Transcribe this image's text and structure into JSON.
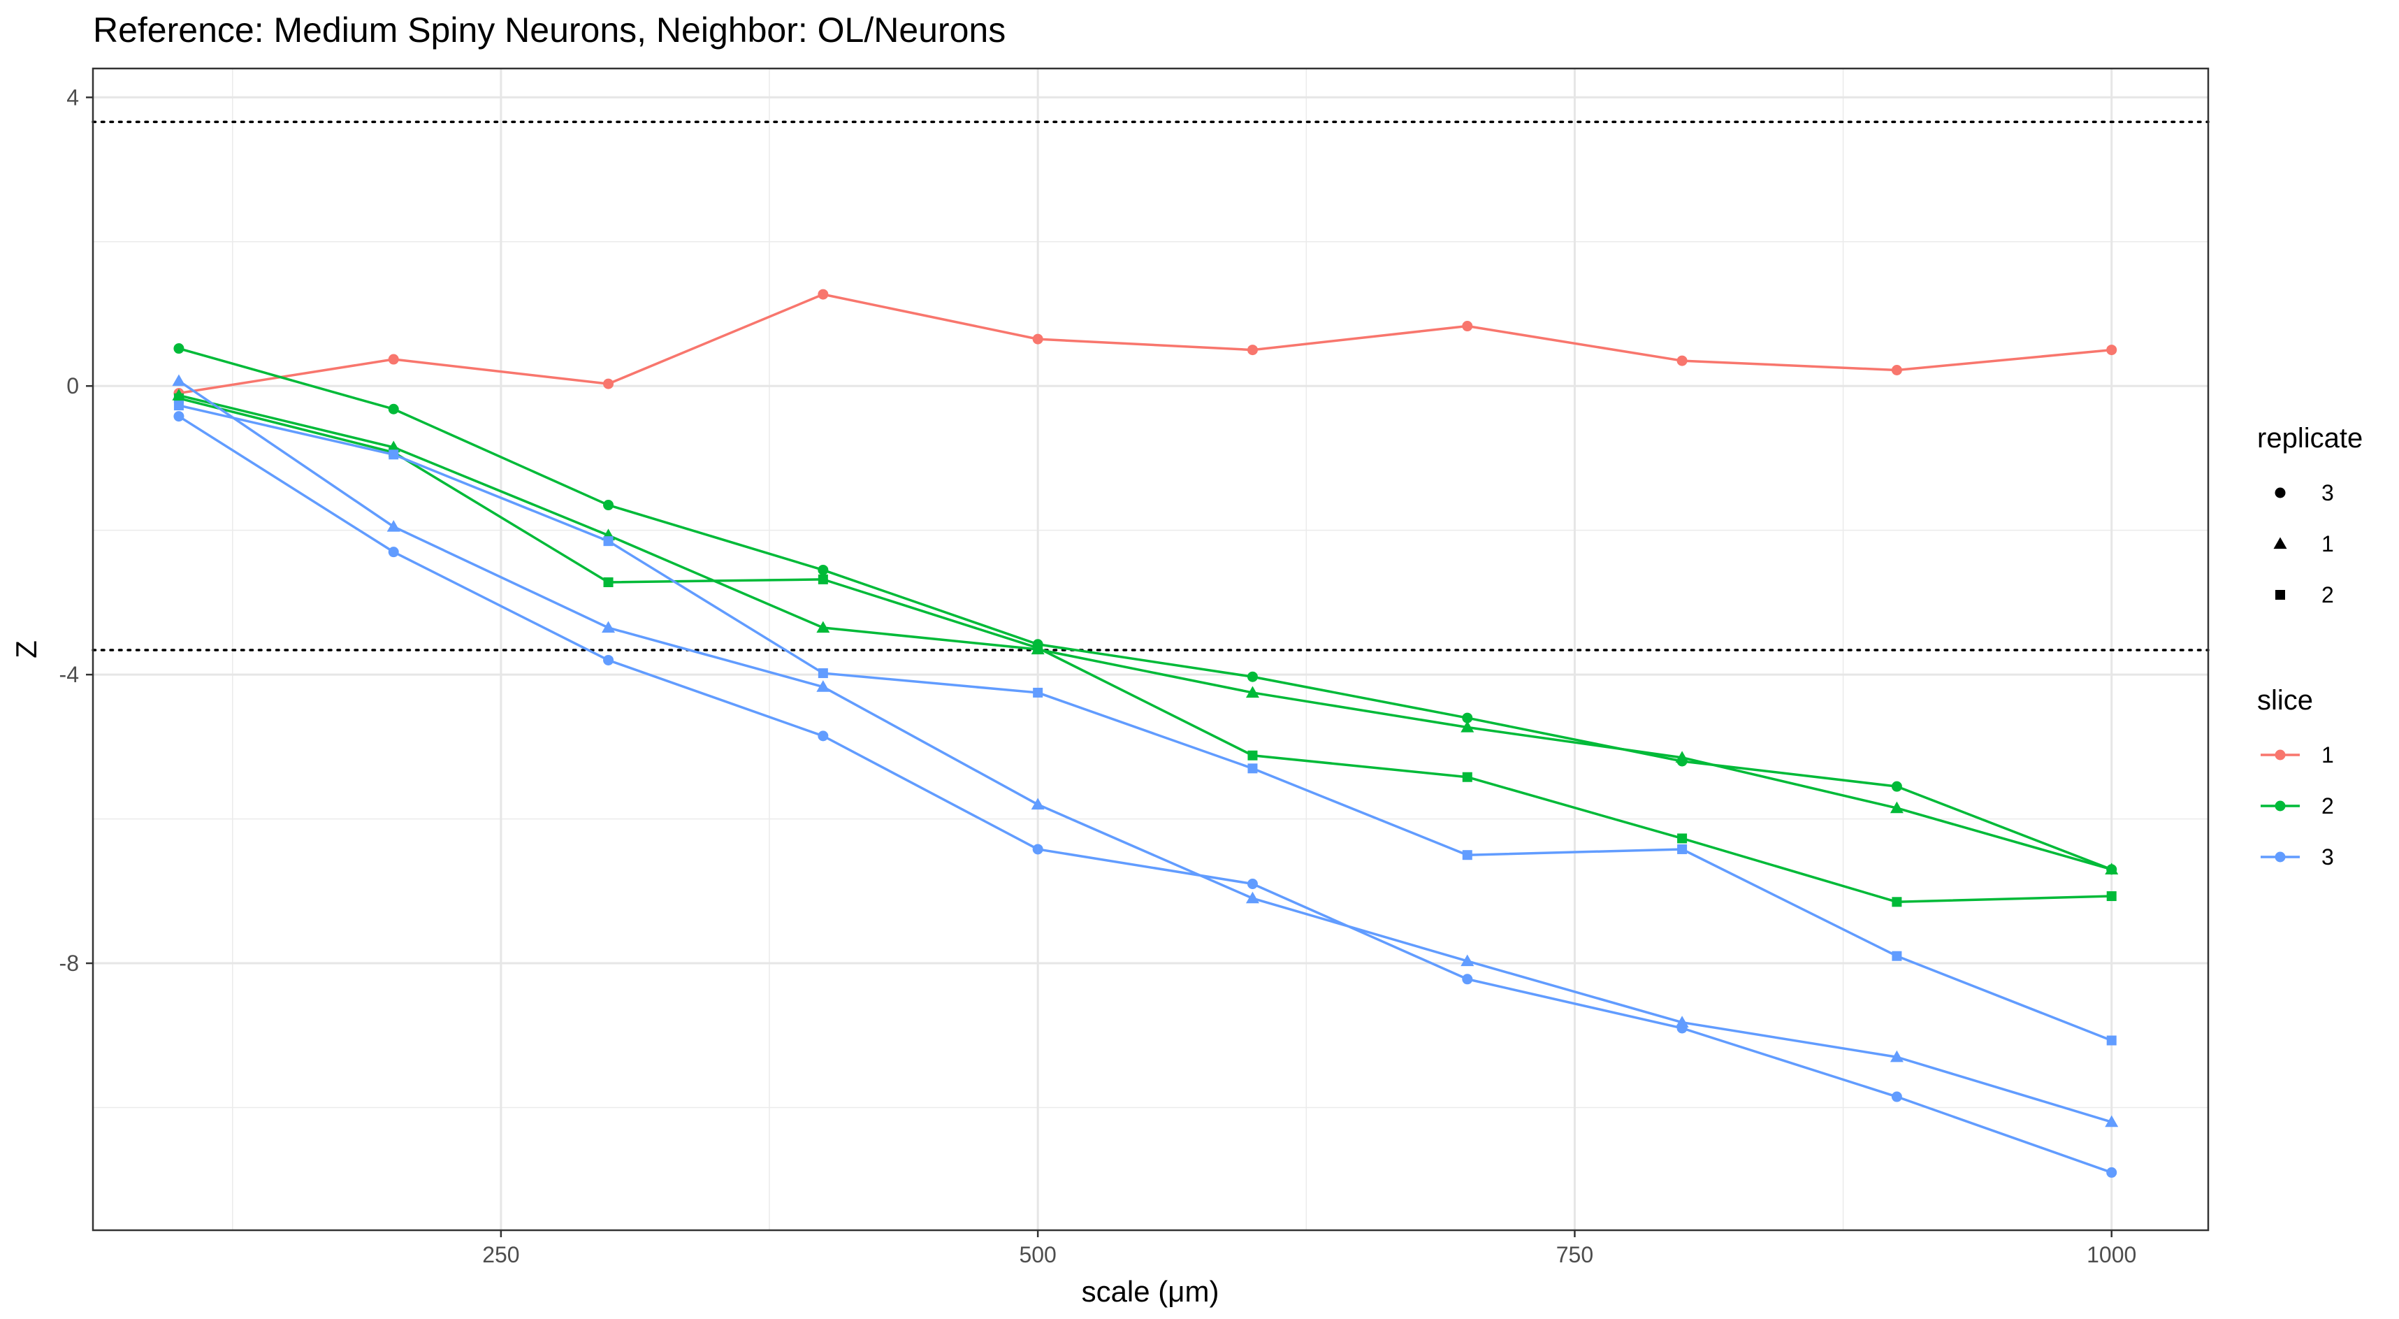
{
  "chart_data": {
    "type": "line",
    "title": "Reference: Medium Spiny Neurons, Neighbor: OL/Neurons",
    "xlabel": "scale (μm)",
    "ylabel": "Z",
    "xlim": [
      60,
      1045
    ],
    "ylim": [
      -11.7,
      4.4
    ],
    "xticks": [
      250,
      500,
      750,
      1000
    ],
    "yticks": [
      4,
      0,
      -4,
      -8
    ],
    "xtick_labels": [
      "250",
      "500",
      "750",
      "1000"
    ],
    "ytick_labels": [
      "4",
      "0",
      "-4",
      "-8"
    ],
    "hlines": [
      3.66,
      -3.66
    ],
    "grid": true,
    "x": [
      100,
      200,
      300,
      400,
      500,
      600,
      700,
      800,
      900,
      1000
    ],
    "series": [
      {
        "slice": "1",
        "replicate": "3",
        "color": "#F8766D",
        "shape": "circle",
        "values": [
          -0.1,
          0.37,
          0.03,
          1.27,
          0.65,
          0.5,
          0.83,
          0.35,
          0.22,
          0.5
        ]
      },
      {
        "slice": "2",
        "replicate": "3",
        "color": "#00BA38",
        "shape": "circle",
        "values": [
          0.52,
          -0.32,
          -1.65,
          -2.55,
          -3.58,
          -4.03,
          -4.6,
          -5.2,
          -5.55,
          -6.7
        ]
      },
      {
        "slice": "2",
        "replicate": "1",
        "color": "#00BA38",
        "shape": "triangle",
        "values": [
          -0.13,
          -0.85,
          -2.07,
          -3.35,
          -3.65,
          -4.25,
          -4.73,
          -5.15,
          -5.85,
          -6.7
        ]
      },
      {
        "slice": "2",
        "replicate": "2",
        "color": "#00BA38",
        "shape": "square",
        "values": [
          -0.17,
          -0.92,
          -2.72,
          -2.68,
          -3.63,
          -5.12,
          -5.42,
          -6.27,
          -7.15,
          -7.07
        ]
      },
      {
        "slice": "3",
        "replicate": "3",
        "color": "#619CFF",
        "shape": "circle",
        "values": [
          -0.42,
          -2.3,
          -3.8,
          -4.85,
          -6.42,
          -6.9,
          -8.22,
          -8.9,
          -9.85,
          -10.9
        ]
      },
      {
        "slice": "3",
        "replicate": "1",
        "color": "#619CFF",
        "shape": "triangle",
        "values": [
          0.07,
          -1.95,
          -3.35,
          -4.17,
          -5.8,
          -7.1,
          -7.97,
          -8.82,
          -9.3,
          -10.2
        ]
      },
      {
        "slice": "3",
        "replicate": "2",
        "color": "#619CFF",
        "shape": "square",
        "values": [
          -0.27,
          -0.95,
          -2.15,
          -3.98,
          -4.25,
          -5.3,
          -6.5,
          -6.42,
          -7.9,
          -9.07
        ]
      }
    ],
    "legends": [
      {
        "title": "replicate",
        "items": [
          {
            "label": "3",
            "shape": "circle"
          },
          {
            "label": "1",
            "shape": "triangle"
          },
          {
            "label": "2",
            "shape": "square"
          }
        ]
      },
      {
        "title": "slice",
        "items": [
          {
            "label": "1",
            "color": "#F8766D"
          },
          {
            "label": "2",
            "color": "#00BA38"
          },
          {
            "label": "3",
            "color": "#619CFF"
          }
        ]
      }
    ],
    "legend_position": "right"
  }
}
